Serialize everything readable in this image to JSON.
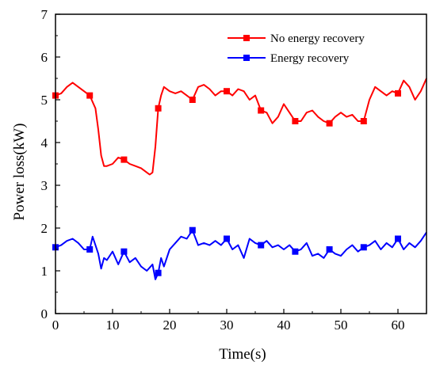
{
  "chart_data": {
    "type": "line",
    "title": "",
    "xlabel": "Time(s)",
    "ylabel": "Power loss(kW)",
    "xlim": [
      0,
      65
    ],
    "ylim": [
      0,
      7
    ],
    "x_ticks": [
      "0",
      "10",
      "20",
      "30",
      "40",
      "50",
      "60"
    ],
    "y_ticks": [
      "0",
      "1",
      "2",
      "3",
      "4",
      "5",
      "6",
      "7"
    ],
    "grid": false,
    "legend_position": "top-right",
    "series": [
      {
        "name": "No energy recovery",
        "color": "#ff0000",
        "marker": "square",
        "x": [
          0,
          1,
          2,
          3,
          4,
          5,
          6,
          7,
          7.5,
          8,
          8.5,
          9,
          10,
          11,
          12,
          13,
          14,
          15,
          16,
          16.5,
          17,
          17.5,
          18,
          18.5,
          19,
          20,
          21,
          22,
          23,
          24,
          25,
          26,
          27,
          28,
          29,
          30,
          31,
          32,
          33,
          34,
          35,
          36,
          37,
          38,
          39,
          40,
          41,
          42,
          43,
          44,
          45,
          46,
          47,
          48,
          49,
          50,
          51,
          52,
          53,
          54,
          55,
          56,
          57,
          58,
          59,
          60,
          61,
          62,
          63,
          64,
          65
        ],
        "y": [
          5.1,
          5.15,
          5.3,
          5.4,
          5.3,
          5.2,
          5.1,
          4.8,
          4.3,
          3.7,
          3.45,
          3.45,
          3.5,
          3.65,
          3.6,
          3.5,
          3.45,
          3.4,
          3.3,
          3.25,
          3.3,
          3.9,
          4.8,
          5.1,
          5.3,
          5.2,
          5.15,
          5.2,
          5.1,
          5.0,
          5.3,
          5.35,
          5.25,
          5.1,
          5.2,
          5.2,
          5.1,
          5.25,
          5.2,
          5.0,
          5.1,
          4.75,
          4.7,
          4.45,
          4.6,
          4.9,
          4.7,
          4.5,
          4.5,
          4.7,
          4.75,
          4.6,
          4.5,
          4.45,
          4.6,
          4.7,
          4.6,
          4.65,
          4.5,
          4.5,
          5.0,
          5.3,
          5.2,
          5.1,
          5.2,
          5.15,
          5.45,
          5.3,
          5.0,
          5.2,
          5.5
        ]
      },
      {
        "name": "Energy recovery",
        "color": "#0000ff",
        "marker": "square",
        "x": [
          0,
          1,
          2,
          3,
          4,
          5,
          6,
          6.5,
          7,
          7.5,
          8,
          8.5,
          9,
          10,
          11,
          12,
          13,
          14,
          15,
          16,
          17,
          17.5,
          18,
          18.5,
          19,
          20,
          21,
          22,
          23,
          24,
          25,
          26,
          27,
          28,
          29,
          30,
          31,
          32,
          33,
          34,
          35,
          36,
          37,
          38,
          39,
          40,
          41,
          42,
          43,
          44,
          45,
          46,
          47,
          48,
          49,
          50,
          51,
          52,
          53,
          54,
          55,
          56,
          57,
          58,
          59,
          60,
          61,
          62,
          63,
          64,
          65
        ],
        "y": [
          1.55,
          1.6,
          1.7,
          1.75,
          1.65,
          1.5,
          1.5,
          1.8,
          1.6,
          1.4,
          1.05,
          1.3,
          1.25,
          1.45,
          1.15,
          1.45,
          1.2,
          1.3,
          1.1,
          1.0,
          1.15,
          0.8,
          0.95,
          1.3,
          1.1,
          1.5,
          1.65,
          1.8,
          1.75,
          1.95,
          1.6,
          1.65,
          1.6,
          1.7,
          1.6,
          1.75,
          1.5,
          1.6,
          1.3,
          1.75,
          1.65,
          1.6,
          1.7,
          1.55,
          1.6,
          1.5,
          1.6,
          1.45,
          1.5,
          1.65,
          1.35,
          1.4,
          1.3,
          1.5,
          1.4,
          1.35,
          1.5,
          1.6,
          1.45,
          1.55,
          1.6,
          1.7,
          1.5,
          1.65,
          1.55,
          1.75,
          1.5,
          1.65,
          1.55,
          1.7,
          1.9
        ]
      }
    ]
  }
}
